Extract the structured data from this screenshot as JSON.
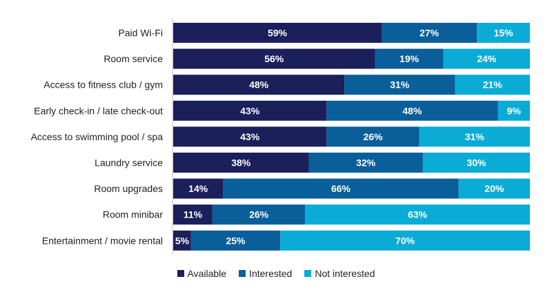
{
  "chart_data": {
    "type": "bar",
    "orientation": "horizontal",
    "stacked": true,
    "categories": [
      "Paid Wi-Fi",
      "Room service",
      "Access to fitness club / gym",
      "Early check-in / late check-out",
      "Access to swimming pool / spa",
      "Laundry service",
      "Room upgrades",
      "Room minibar",
      "Entertainment / movie rental"
    ],
    "series": [
      {
        "name": "Available",
        "color": "#1b1f5a",
        "values": [
          59,
          56,
          48,
          43,
          43,
          38,
          14,
          11,
          5
        ],
        "labels": [
          "59%",
          "56%",
          "48%",
          "43%",
          "43%",
          "38%",
          "14%",
          "11%",
          "5%"
        ]
      },
      {
        "name": "Interested",
        "color": "#0a5f9a",
        "values": [
          27,
          19,
          31,
          48,
          26,
          32,
          66,
          26,
          25
        ],
        "labels": [
          "27%",
          "19%",
          "31%",
          "48%",
          "26%",
          "32%",
          "66%",
          "26%",
          "25%"
        ]
      },
      {
        "name": "Not interested",
        "color": "#0aacd6",
        "values": [
          15,
          24,
          21,
          9,
          31,
          30,
          20,
          63,
          70
        ],
        "labels": [
          "15%",
          "24%",
          "21%",
          "9%",
          "31%",
          "30%",
          "20%",
          "63%",
          "70%"
        ]
      }
    ],
    "legend_position": "bottom",
    "grid": false
  }
}
